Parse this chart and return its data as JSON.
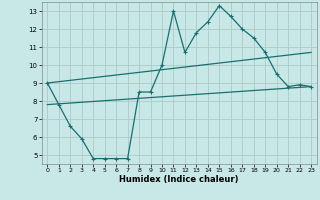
{
  "title": "",
  "xlabel": "Humidex (Indice chaleur)",
  "ylabel": "",
  "bg_color": "#c8e8e8",
  "grid_color": "#b0c8c8",
  "line_color": "#1a6e6e",
  "xlim": [
    -0.5,
    23.5
  ],
  "ylim": [
    4.5,
    13.5
  ],
  "yticks": [
    5,
    6,
    7,
    8,
    9,
    10,
    11,
    12,
    13
  ],
  "xticks": [
    0,
    1,
    2,
    3,
    4,
    5,
    6,
    7,
    8,
    9,
    10,
    11,
    12,
    13,
    14,
    15,
    16,
    17,
    18,
    19,
    20,
    21,
    22,
    23
  ],
  "line1_x": [
    0,
    1,
    2,
    3,
    4,
    5,
    6,
    7,
    8,
    9,
    10,
    11,
    12,
    13,
    14,
    15,
    16,
    17,
    18,
    19,
    20,
    21,
    22,
    23
  ],
  "line1_y": [
    9.0,
    7.8,
    6.6,
    5.9,
    4.8,
    4.8,
    4.8,
    4.8,
    8.5,
    8.5,
    10.0,
    13.0,
    10.7,
    11.8,
    12.4,
    13.3,
    12.7,
    12.0,
    11.5,
    10.7,
    9.5,
    8.8,
    8.9,
    8.8
  ],
  "line2_x": [
    0,
    23
  ],
  "line2_y": [
    9.0,
    10.7
  ],
  "line3_x": [
    0,
    23
  ],
  "line3_y": [
    7.8,
    8.8
  ]
}
